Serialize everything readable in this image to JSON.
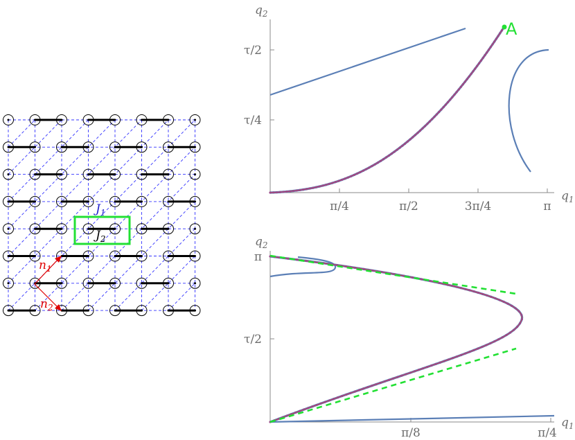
{
  "colors": {
    "curve": "#5b7fb6",
    "fit": "#d3314f",
    "dots": "#9a4a8a",
    "green": "#22e033",
    "bond_strong": "#000000",
    "bond_weak": "#3333ff",
    "arrow": "#e00000"
  },
  "lattice": {
    "rows": 8,
    "cols": 8,
    "labels": {
      "J1": {
        "base": "J",
        "sub": "1"
      },
      "J2": {
        "base": "J",
        "sub": "2"
      },
      "n1": {
        "base": "n",
        "sub": "1"
      },
      "n2": {
        "base": "n",
        "sub": "2"
      }
    }
  },
  "top_plot": {
    "xlabel": {
      "base": "q",
      "sub": "1"
    },
    "ylabel": {
      "base": "q",
      "sub": "2"
    },
    "xticks": [
      "π/4",
      "π/2",
      "3π/4",
      "π"
    ],
    "yticks": [
      "τ/4",
      "τ/2"
    ],
    "point_label": "A"
  },
  "bottom_plot": {
    "xlabel": {
      "base": "q",
      "sub": "1"
    },
    "ylabel": {
      "base": "q",
      "sub": "2"
    },
    "xticks": [
      "π/8",
      "π/4"
    ],
    "yticks": [
      "τ/2",
      "π"
    ]
  }
}
